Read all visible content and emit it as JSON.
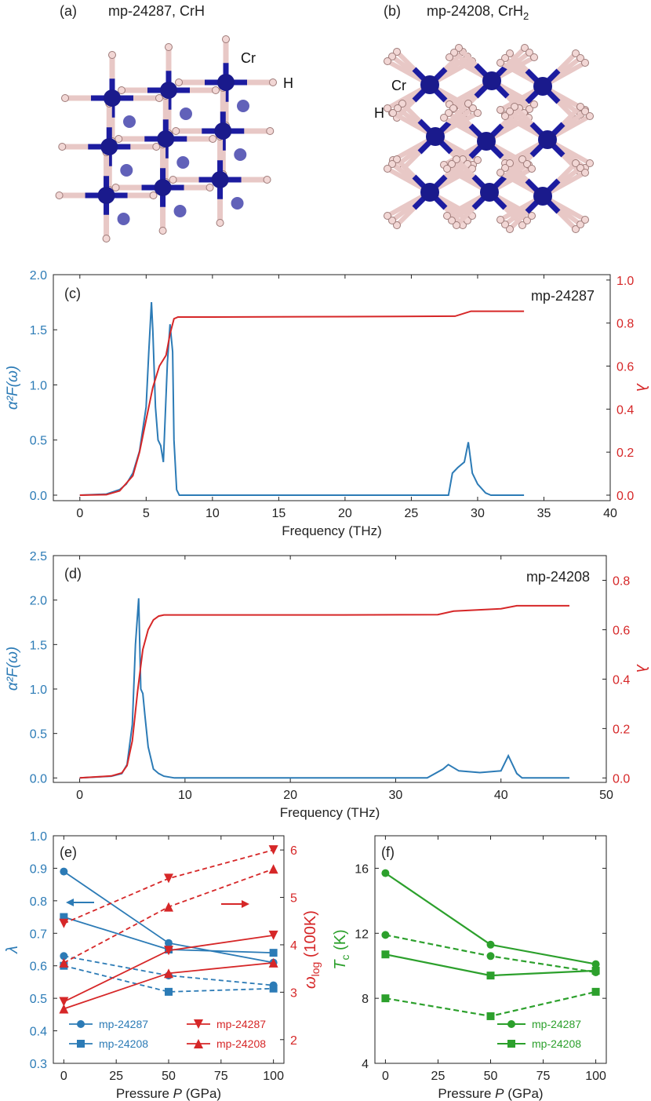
{
  "colors": {
    "blue": "#2c7bb6",
    "red": "#d62728",
    "green": "#2ca02c",
    "cr_atom": "#1a1a8c",
    "h_atom": "#f2d7d5",
    "bond_cr": "#1c1ca0",
    "bond_h": "#e8c8c6"
  },
  "panel_a": {
    "label": "(a)",
    "title": "mp-24287, CrH",
    "atom_cr": "Cr",
    "atom_h": "H"
  },
  "panel_b": {
    "label": "(b)",
    "title_main": "mp-24208, CrH",
    "title_sub": "2",
    "atom_cr": "Cr",
    "atom_h": "H"
  },
  "chart_data": [
    {
      "id": "c",
      "label": "(c)",
      "type": "line",
      "annotation": "mp-24287",
      "xlabel": "Frequency (THz)",
      "ylabel": "α²F(ω)",
      "y2label": "λ",
      "xlim": [
        -2,
        40
      ],
      "ylim": [
        -0.05,
        2.0
      ],
      "y2lim": [
        -0.0256,
        1.025
      ],
      "xticks": [
        0,
        5,
        10,
        15,
        20,
        25,
        30,
        35,
        40
      ],
      "yticks": [
        0.0,
        0.5,
        1.0,
        1.5,
        2.0
      ],
      "ytick_labels": [
        "0.0",
        "0.5",
        "1.0",
        "1.5",
        "2.0"
      ],
      "y2ticks": [
        0.0,
        0.2,
        0.4,
        0.6,
        0.8,
        1.0
      ],
      "y2tick_labels": [
        "0.0",
        "0.2",
        "0.4",
        "0.6",
        "0.8",
        "1.0"
      ],
      "a2f": {
        "x": [
          0,
          2,
          3,
          3.5,
          4,
          4.5,
          5,
          5.2,
          5.4,
          5.5,
          5.7,
          5.9,
          6.1,
          6.3,
          6.6,
          6.8,
          7.0,
          7.1,
          7.3,
          7.5,
          10,
          20,
          27.8,
          28.1,
          28.5,
          29.0,
          29.3,
          29.6,
          30.0,
          30.6,
          31,
          33.5
        ],
        "y": [
          0,
          0.01,
          0.05,
          0.1,
          0.2,
          0.4,
          0.8,
          1.3,
          1.75,
          1.5,
          0.8,
          0.5,
          0.45,
          0.3,
          1.2,
          1.55,
          1.3,
          0.5,
          0.05,
          0.0,
          0.0,
          0.0,
          0.0,
          0.2,
          0.25,
          0.3,
          0.48,
          0.2,
          0.1,
          0.02,
          0.0,
          0.0
        ]
      },
      "lambda": {
        "x": [
          0,
          2,
          3,
          4,
          4.5,
          5,
          5.5,
          6,
          6.5,
          6.8,
          7.1,
          7.4,
          10,
          20,
          28.3,
          29.5,
          33.5
        ],
        "y": [
          0,
          0.002,
          0.02,
          0.09,
          0.2,
          0.35,
          0.5,
          0.6,
          0.65,
          0.75,
          0.82,
          0.828,
          0.828,
          0.83,
          0.832,
          0.855,
          0.855
        ]
      }
    },
    {
      "id": "d",
      "label": "(d)",
      "type": "line",
      "annotation": "mp-24208",
      "xlabel": "Frequency (THz)",
      "ylabel": "α²F(ω)",
      "y2label": "λ",
      "xlim": [
        -2.5,
        50
      ],
      "ylim": [
        -0.05,
        2.5
      ],
      "y2lim": [
        -0.018,
        0.9
      ],
      "xticks": [
        0,
        10,
        20,
        30,
        40,
        50
      ],
      "yticks": [
        0.0,
        0.5,
        1.0,
        1.5,
        2.0,
        2.5
      ],
      "ytick_labels": [
        "0.0",
        "0.5",
        "1.0",
        "1.5",
        "2.0",
        "2.5"
      ],
      "y2ticks": [
        0.0,
        0.2,
        0.4,
        0.6,
        0.8
      ],
      "y2tick_labels": [
        "0.0",
        "0.2",
        "0.4",
        "0.6",
        "0.8"
      ],
      "a2f": {
        "x": [
          0,
          3,
          4,
          4.5,
          5,
          5.3,
          5.6,
          5.8,
          6.0,
          6.2,
          6.5,
          7,
          7.5,
          8,
          9,
          33,
          34.5,
          35,
          36,
          38,
          40,
          40.7,
          41.5,
          42,
          46.5
        ],
        "y": [
          0,
          0.02,
          0.05,
          0.15,
          0.6,
          1.5,
          2.02,
          1.0,
          0.95,
          0.7,
          0.35,
          0.1,
          0.05,
          0.02,
          0.0,
          0.0,
          0.1,
          0.15,
          0.08,
          0.06,
          0.08,
          0.25,
          0.05,
          0.0,
          0.0
        ]
      },
      "lambda": {
        "x": [
          0,
          3,
          4,
          4.5,
          5,
          5.5,
          6,
          6.5,
          7,
          7.5,
          8,
          10,
          25,
          34,
          35.5,
          40,
          41.5,
          46.5
        ],
        "y": [
          0.0,
          0.008,
          0.02,
          0.05,
          0.15,
          0.35,
          0.52,
          0.6,
          0.64,
          0.655,
          0.66,
          0.66,
          0.66,
          0.661,
          0.675,
          0.685,
          0.697,
          0.697
        ]
      }
    },
    {
      "id": "e",
      "label": "(e)",
      "type": "line",
      "xlabel_parts": [
        "Pressure ",
        "P",
        " (GPa)"
      ],
      "ylabel": "λ",
      "y2label_main": "ω",
      "y2label_sub": "log",
      "y2label_rest": " (100K)",
      "x": [
        0,
        50,
        100
      ],
      "xlim": [
        -5,
        105
      ],
      "ylim": [
        0.3,
        1.0
      ],
      "y2lim": [
        1.5,
        6.3
      ],
      "xticks": [
        0,
        25,
        50,
        75,
        100
      ],
      "yticks": [
        0.3,
        0.4,
        0.5,
        0.6,
        0.7,
        0.8,
        0.9,
        1.0
      ],
      "ytick_labels": [
        "0.3",
        "0.4",
        "0.5",
        "0.6",
        "0.7",
        "0.8",
        "0.9",
        "1.0"
      ],
      "y2ticks": [
        2,
        3,
        4,
        5,
        6
      ],
      "y2tick_labels": [
        "2",
        "3",
        "4",
        "5",
        "6"
      ],
      "series": [
        {
          "name": "mp-24287",
          "axis": "left",
          "color": "blue",
          "marker": "circle",
          "dash": false,
          "values": [
            0.89,
            0.67,
            0.61
          ]
        },
        {
          "name": "mp-24287",
          "axis": "left",
          "color": "blue",
          "marker": "circle",
          "dash": true,
          "values": [
            0.63,
            0.57,
            0.54
          ]
        },
        {
          "name": "mp-24208",
          "axis": "left",
          "color": "blue",
          "marker": "square",
          "dash": false,
          "values": [
            0.75,
            0.65,
            0.64
          ]
        },
        {
          "name": "mp-24208",
          "axis": "left",
          "color": "blue",
          "marker": "square",
          "dash": true,
          "values": [
            0.6,
            0.52,
            0.53
          ]
        },
        {
          "name": "mp-24287",
          "axis": "right",
          "color": "red",
          "marker": "tri-down",
          "dash": false,
          "values": [
            2.8,
            3.88,
            4.2
          ]
        },
        {
          "name": "mp-24287",
          "axis": "right",
          "color": "red",
          "marker": "tri-down",
          "dash": true,
          "values": [
            4.45,
            5.4,
            6.0
          ]
        },
        {
          "name": "mp-24208",
          "axis": "right",
          "color": "red",
          "marker": "tri-up",
          "dash": false,
          "values": [
            2.65,
            3.4,
            3.62
          ]
        },
        {
          "name": "mp-24208",
          "axis": "right",
          "color": "red",
          "marker": "tri-up",
          "dash": true,
          "values": [
            3.62,
            4.8,
            5.6
          ]
        }
      ],
      "legend": [
        {
          "label": "mp-24287",
          "color": "blue",
          "marker": "circle"
        },
        {
          "label": "mp-24208",
          "color": "blue",
          "marker": "square"
        },
        {
          "label": "mp-24287",
          "color": "red",
          "marker": "tri-down"
        },
        {
          "label": "mp-24208",
          "color": "red",
          "marker": "tri-up"
        }
      ],
      "arrows": [
        {
          "direction": "left",
          "color": "blue"
        },
        {
          "direction": "right",
          "color": "red"
        }
      ]
    },
    {
      "id": "f",
      "label": "(f)",
      "type": "line",
      "xlabel_parts": [
        "Pressure ",
        "P",
        " (GPa)"
      ],
      "ylabel_main": "T",
      "ylabel_sub": "c",
      "ylabel_rest": " (K)",
      "x": [
        0,
        50,
        100
      ],
      "xlim": [
        -5,
        105
      ],
      "ylim": [
        4,
        18
      ],
      "xticks": [
        0,
        25,
        50,
        75,
        100
      ],
      "yticks": [
        4,
        8,
        12,
        16
      ],
      "ytick_labels": [
        "4",
        "8",
        "12",
        "16"
      ],
      "series": [
        {
          "name": "mp-24287",
          "color": "green",
          "marker": "circle",
          "dash": false,
          "values": [
            15.7,
            11.3,
            10.1
          ]
        },
        {
          "name": "mp-24287",
          "color": "green",
          "marker": "circle",
          "dash": true,
          "values": [
            11.9,
            10.6,
            9.6
          ]
        },
        {
          "name": "mp-24208",
          "color": "green",
          "marker": "square",
          "dash": false,
          "values": [
            10.7,
            9.4,
            9.7
          ]
        },
        {
          "name": "mp-24208",
          "color": "green",
          "marker": "square",
          "dash": true,
          "values": [
            8.0,
            6.9,
            8.4
          ]
        }
      ],
      "legend": [
        {
          "label": "mp-24287",
          "color": "green",
          "marker": "circle"
        },
        {
          "label": "mp-24208",
          "color": "green",
          "marker": "square"
        }
      ]
    }
  ]
}
